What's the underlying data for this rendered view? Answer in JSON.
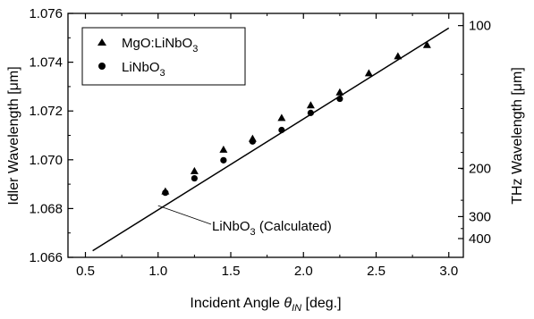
{
  "chart_data": {
    "type": "scatter",
    "xlabel": {
      "main": "Incident Angle ",
      "symbol": "θ",
      "sub": "IN",
      "unit": " [deg.]"
    },
    "ylabel": "Idler Wavelength [μm]",
    "y2label": "THz Wavelength [μm]",
    "xlim": [
      0.38,
      3.1
    ],
    "ylim": [
      1.066,
      1.076
    ],
    "x_ticks": [
      "0.5",
      "1.0",
      "1.5",
      "2.0",
      "2.5",
      "3.0"
    ],
    "y_ticks": [
      "1.066",
      "1.068",
      "1.070",
      "1.072",
      "1.074",
      "1.076"
    ],
    "y2_ticks": [
      {
        "label": "100",
        "idler_um": 1.0755
      },
      {
        "label": "200",
        "idler_um": 1.06965
      },
      {
        "label": "300",
        "idler_um": 1.06767
      },
      {
        "label": "400",
        "idler_um": 1.06677
      }
    ],
    "y2_minor_ticks": [
      1.0735,
      1.0721,
      1.0711,
      1.0703,
      1.06963,
      1.06834,
      1.06718
    ],
    "grid": false,
    "legend_position": "top-left",
    "series": [
      {
        "name": {
          "main": "MgO:LiNbO",
          "sub": "3"
        },
        "marker": "triangle",
        "points": [
          [
            1.05,
            1.06869
          ],
          [
            1.25,
            1.06952
          ],
          [
            1.45,
            1.0704
          ],
          [
            1.65,
            1.07085
          ],
          [
            1.85,
            1.0717
          ],
          [
            2.05,
            1.07222
          ],
          [
            2.25,
            1.07275
          ],
          [
            2.45,
            1.07353
          ],
          [
            2.65,
            1.07423
          ],
          [
            2.85,
            1.07469
          ]
        ]
      },
      {
        "name": {
          "main": "LiNbO",
          "sub": "3"
        },
        "marker": "circle",
        "points": [
          [
            1.05,
            1.06865
          ],
          [
            1.25,
            1.06924
          ],
          [
            1.45,
            1.06998
          ],
          [
            1.65,
            1.07075
          ],
          [
            1.85,
            1.07122
          ],
          [
            2.05,
            1.07192
          ],
          [
            2.25,
            1.0725
          ]
        ]
      }
    ],
    "fit_line": {
      "label": "LiNbO₃ (Calculated)",
      "label_main": "LiNbO",
      "label_sub": "3",
      "label_rest": " (Calculated)",
      "points": [
        [
          0.55,
          1.06627
        ],
        [
          3.0,
          1.0754
        ]
      ]
    },
    "annotation_anchor": [
      1.0,
      1.06812
    ]
  }
}
